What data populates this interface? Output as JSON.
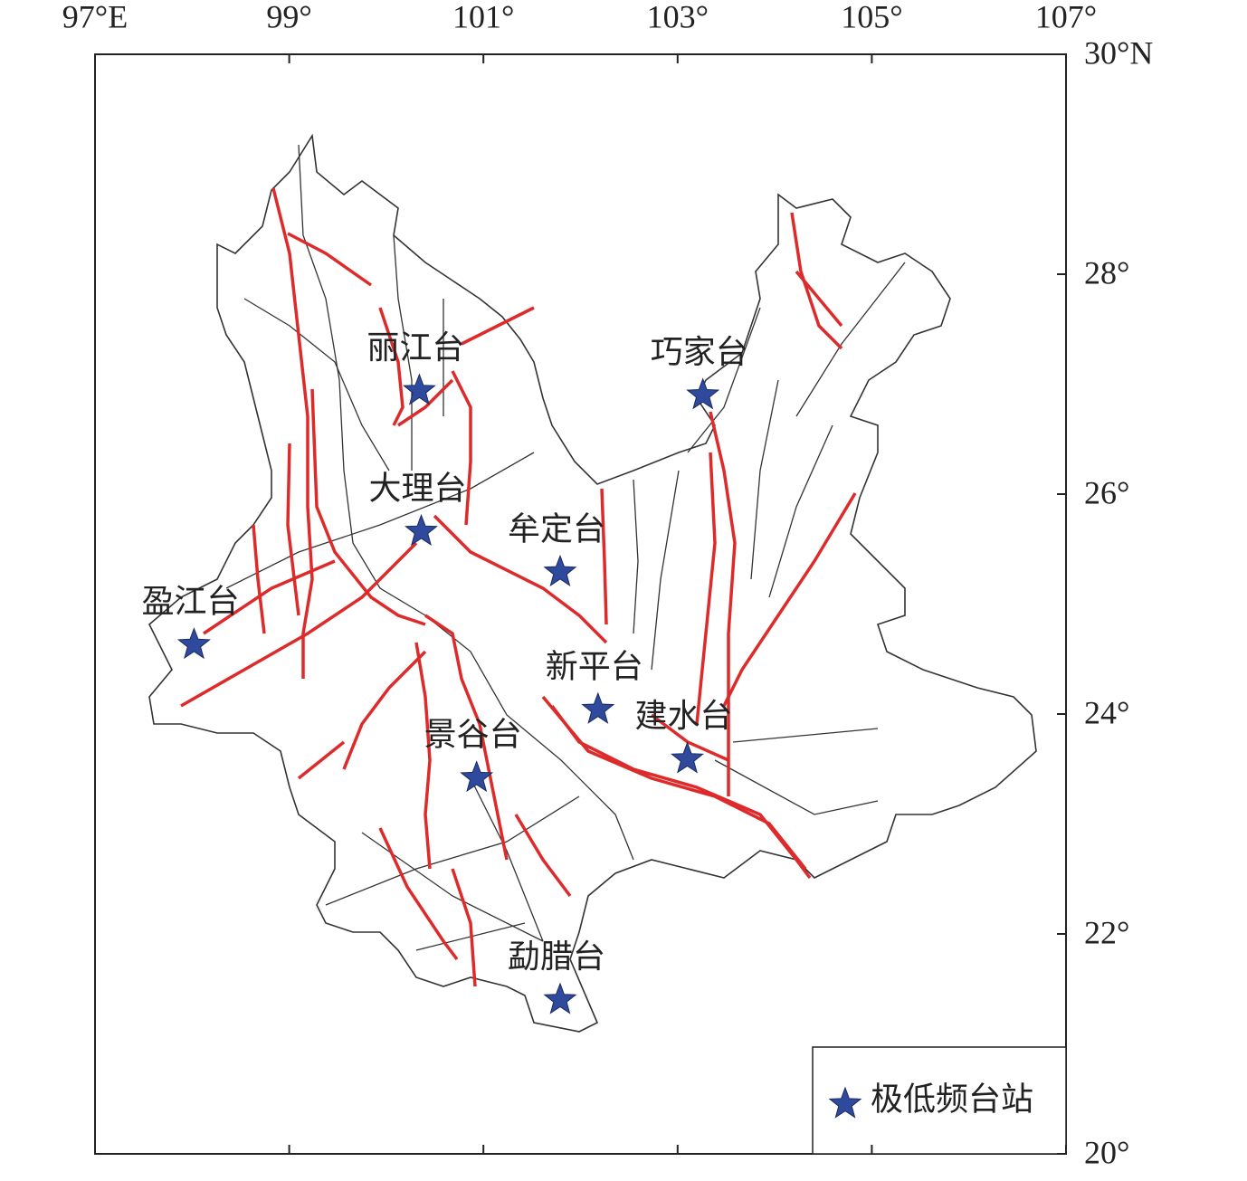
{
  "map": {
    "xlim": [
      97,
      107
    ],
    "ylim": [
      20,
      30
    ],
    "xticks": [
      {
        "value": 97,
        "label": "97°E"
      },
      {
        "value": 99,
        "label": "99°"
      },
      {
        "value": 101,
        "label": "101°"
      },
      {
        "value": 103,
        "label": "103°"
      },
      {
        "value": 105,
        "label": "105°"
      },
      {
        "value": 107,
        "label": "107°"
      }
    ],
    "yticks": [
      {
        "value": 30,
        "label": "30°N"
      },
      {
        "value": 28,
        "label": "28°"
      },
      {
        "value": 26,
        "label": "26°"
      },
      {
        "value": 24,
        "label": "24°"
      },
      {
        "value": 22,
        "label": "22°"
      },
      {
        "value": 20,
        "label": "20°"
      }
    ],
    "marker_color": "#2f4a9c",
    "stations": [
      {
        "name": "丽江台",
        "lon": 100.34,
        "lat": 26.94
      },
      {
        "name": "巧家台",
        "lon": 103.26,
        "lat": 26.9
      },
      {
        "name": "大理台",
        "lon": 100.36,
        "lat": 25.66
      },
      {
        "name": "牟定台",
        "lon": 101.79,
        "lat": 25.29
      },
      {
        "name": "盈江台",
        "lon": 98.02,
        "lat": 24.63
      },
      {
        "name": "新平台",
        "lon": 102.18,
        "lat": 24.04
      },
      {
        "name": "建水台",
        "lon": 103.1,
        "lat": 23.59
      },
      {
        "name": "景谷台",
        "lon": 100.93,
        "lat": 23.42
      },
      {
        "name": "勐腊台",
        "lon": 101.79,
        "lat": 21.4
      }
    ],
    "legend": "极低频台站"
  }
}
